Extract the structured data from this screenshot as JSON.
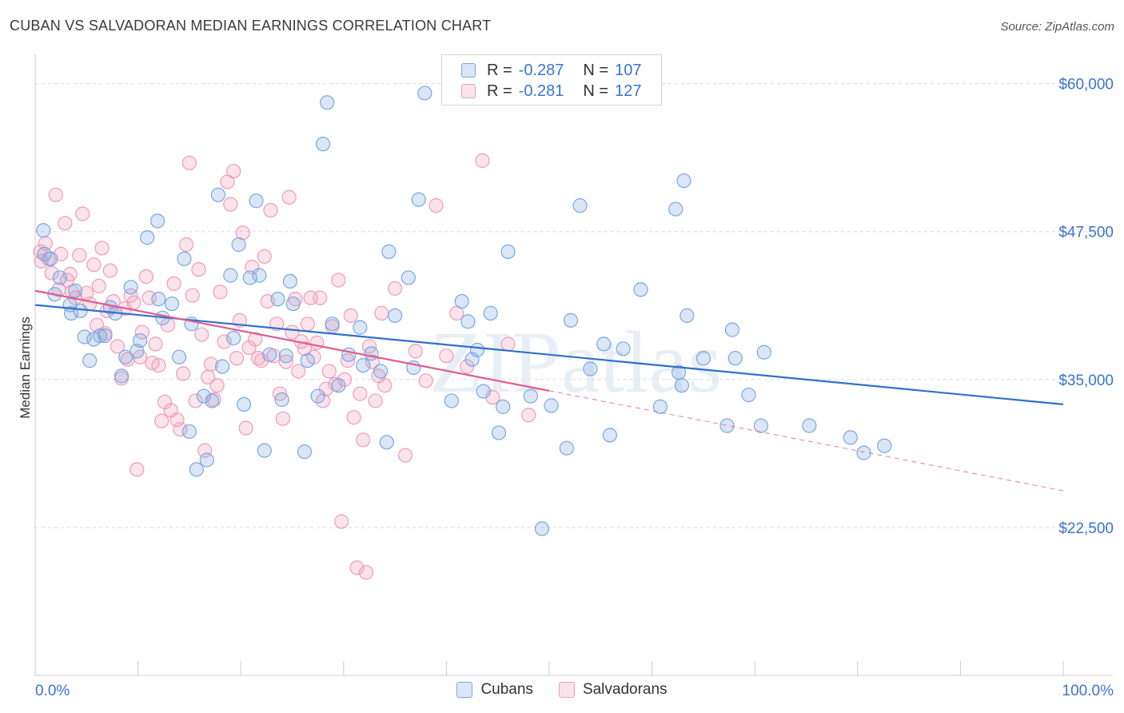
{
  "header": {
    "title": "CUBAN VS SALVADORAN MEDIAN EARNINGS CORRELATION CHART",
    "source": "Source: ZipAtlas.com"
  },
  "watermark": "ZIPatlas",
  "legend": {
    "rows": [
      {
        "r_label": "R =",
        "r_value": "-0.287",
        "n_label": "N =",
        "n_value": "107",
        "color": "#7aa7e0"
      },
      {
        "r_label": "R =",
        "r_value": "-0.281",
        "n_label": "N =",
        "n_value": "127",
        "color": "#f19bb8"
      }
    ]
  },
  "bottom_legend": {
    "items": [
      {
        "label": "Cubans",
        "color": "#7aa7e0"
      },
      {
        "label": "Salvadorans",
        "color": "#f19bb8"
      }
    ]
  },
  "chart_data": {
    "type": "scatter",
    "title": "CUBAN VS SALVADORAN MEDIAN EARNINGS CORRELATION CHART",
    "ylabel": "Median Earnings",
    "xlim": [
      0,
      100
    ],
    "ylim": [
      10000,
      62000
    ],
    "x_tick_labels": [
      "0.0%",
      "100.0%"
    ],
    "y_ticks": [
      22500,
      35000,
      47500,
      60000
    ],
    "y_tick_labels": [
      "$22,500",
      "$35,000",
      "$47,500",
      "$60,000"
    ],
    "grid": "dashed horizontal",
    "series": [
      {
        "name": "Cubans",
        "color": "#7aa7e0",
        "line_color": "#2f6fcf",
        "trend": {
          "x0": 0,
          "y0": 41300,
          "x1": 100,
          "y1": 32900,
          "dashed_from": null
        },
        "points": [
          [
            0.8,
            47600
          ],
          [
            0.9,
            45600
          ],
          [
            1.5,
            45200
          ],
          [
            1.9,
            42200
          ],
          [
            2.4,
            43600
          ],
          [
            3.4,
            41300
          ],
          [
            3.5,
            40600
          ],
          [
            3.9,
            42500
          ],
          [
            4.4,
            40800
          ],
          [
            4.8,
            38600
          ],
          [
            5.3,
            36600
          ],
          [
            5.7,
            38400
          ],
          [
            6.3,
            38700
          ],
          [
            6.8,
            38700
          ],
          [
            7.3,
            41100
          ],
          [
            7.8,
            40600
          ],
          [
            8.4,
            35300
          ],
          [
            8.8,
            36900
          ],
          [
            9.3,
            42800
          ],
          [
            9.9,
            37400
          ],
          [
            10.2,
            38300
          ],
          [
            10.9,
            47000
          ],
          [
            11.9,
            48400
          ],
          [
            12.0,
            41800
          ],
          [
            12.4,
            40200
          ],
          [
            13.3,
            41400
          ],
          [
            14.0,
            36900
          ],
          [
            14.5,
            45200
          ],
          [
            15.0,
            30600
          ],
          [
            15.2,
            39700
          ],
          [
            15.7,
            27400
          ],
          [
            16.4,
            33600
          ],
          [
            16.7,
            28200
          ],
          [
            17.2,
            33200
          ],
          [
            17.8,
            50600
          ],
          [
            18.2,
            36100
          ],
          [
            19.0,
            43800
          ],
          [
            19.3,
            38500
          ],
          [
            19.8,
            46400
          ],
          [
            20.3,
            32900
          ],
          [
            20.9,
            43600
          ],
          [
            21.5,
            50100
          ],
          [
            21.8,
            43800
          ],
          [
            22.3,
            29000
          ],
          [
            22.8,
            37100
          ],
          [
            23.6,
            41800
          ],
          [
            24.0,
            33300
          ],
          [
            24.4,
            37000
          ],
          [
            24.8,
            43300
          ],
          [
            25.1,
            41400
          ],
          [
            26.2,
            28900
          ],
          [
            26.5,
            36600
          ],
          [
            27.5,
            33600
          ],
          [
            28.0,
            54900
          ],
          [
            28.4,
            58400
          ],
          [
            28.9,
            39700
          ],
          [
            29.5,
            34500
          ],
          [
            30.5,
            37100
          ],
          [
            31.6,
            39400
          ],
          [
            31.9,
            36200
          ],
          [
            32.7,
            37200
          ],
          [
            33.6,
            35700
          ],
          [
            34.2,
            29700
          ],
          [
            34.4,
            45800
          ],
          [
            35.0,
            40400
          ],
          [
            36.3,
            43600
          ],
          [
            36.8,
            36000
          ],
          [
            37.3,
            50200
          ],
          [
            37.9,
            59200
          ],
          [
            40.5,
            33200
          ],
          [
            41.5,
            41600
          ],
          [
            42.1,
            39900
          ],
          [
            42.5,
            36700
          ],
          [
            43.0,
            37500
          ],
          [
            43.6,
            34000
          ],
          [
            44.3,
            40600
          ],
          [
            45.1,
            30500
          ],
          [
            45.5,
            32700
          ],
          [
            46.0,
            45800
          ],
          [
            48.2,
            33600
          ],
          [
            49.3,
            22400
          ],
          [
            50.2,
            32800
          ],
          [
            51.7,
            29200
          ],
          [
            52.1,
            40000
          ],
          [
            53.0,
            49700
          ],
          [
            54.0,
            35900
          ],
          [
            55.3,
            38000
          ],
          [
            55.9,
            30300
          ],
          [
            57.2,
            37600
          ],
          [
            58.9,
            42600
          ],
          [
            60.8,
            32700
          ],
          [
            62.3,
            49400
          ],
          [
            62.6,
            35600
          ],
          [
            62.9,
            34500
          ],
          [
            63.1,
            51800
          ],
          [
            63.4,
            40400
          ],
          [
            65.0,
            36800
          ],
          [
            67.3,
            31100
          ],
          [
            67.8,
            39200
          ],
          [
            68.1,
            36800
          ],
          [
            69.4,
            33700
          ],
          [
            70.6,
            31100
          ],
          [
            70.9,
            37300
          ],
          [
            75.3,
            31100
          ],
          [
            79.3,
            30100
          ],
          [
            80.6,
            28800
          ],
          [
            82.6,
            29400
          ]
        ]
      },
      {
        "name": "Salvadorans",
        "color": "#f19bb8",
        "line_color": "#e05c8c",
        "trend": {
          "x0": 0,
          "y0": 42500,
          "x1": 100,
          "y1": 25600,
          "dashed_from": 50
        },
        "points": [
          [
            0.5,
            45800
          ],
          [
            0.6,
            45000
          ],
          [
            1.0,
            46500
          ],
          [
            1.3,
            45200
          ],
          [
            1.6,
            44000
          ],
          [
            2.0,
            50600
          ],
          [
            2.3,
            42600
          ],
          [
            2.5,
            45600
          ],
          [
            2.9,
            48200
          ],
          [
            3.1,
            43400
          ],
          [
            3.4,
            43900
          ],
          [
            3.6,
            42400
          ],
          [
            3.9,
            41900
          ],
          [
            4.3,
            45500
          ],
          [
            4.6,
            49000
          ],
          [
            5.0,
            42300
          ],
          [
            5.3,
            41400
          ],
          [
            5.7,
            44700
          ],
          [
            6.0,
            39600
          ],
          [
            6.2,
            42900
          ],
          [
            6.5,
            46100
          ],
          [
            6.8,
            38900
          ],
          [
            7.0,
            40800
          ],
          [
            7.3,
            44200
          ],
          [
            7.6,
            41600
          ],
          [
            8.0,
            37800
          ],
          [
            8.4,
            35100
          ],
          [
            8.7,
            41000
          ],
          [
            9.0,
            36700
          ],
          [
            9.3,
            42100
          ],
          [
            9.6,
            41500
          ],
          [
            9.9,
            27400
          ],
          [
            10.2,
            36900
          ],
          [
            10.4,
            39000
          ],
          [
            10.8,
            43700
          ],
          [
            11.1,
            41900
          ],
          [
            11.4,
            36400
          ],
          [
            11.7,
            38000
          ],
          [
            12.0,
            36200
          ],
          [
            12.3,
            31500
          ],
          [
            12.6,
            33100
          ],
          [
            12.9,
            39600
          ],
          [
            13.2,
            32400
          ],
          [
            13.5,
            43100
          ],
          [
            13.8,
            31600
          ],
          [
            14.1,
            30800
          ],
          [
            14.4,
            35500
          ],
          [
            14.7,
            46400
          ],
          [
            15.0,
            53300
          ],
          [
            15.3,
            42100
          ],
          [
            15.6,
            33200
          ],
          [
            15.9,
            44300
          ],
          [
            16.2,
            38800
          ],
          [
            16.5,
            29000
          ],
          [
            16.8,
            35200
          ],
          [
            17.1,
            36300
          ],
          [
            17.4,
            33300
          ],
          [
            17.7,
            34500
          ],
          [
            18.0,
            42400
          ],
          [
            18.4,
            38200
          ],
          [
            18.7,
            51700
          ],
          [
            19.0,
            49800
          ],
          [
            19.3,
            52600
          ],
          [
            19.6,
            36800
          ],
          [
            19.9,
            40000
          ],
          [
            20.2,
            47400
          ],
          [
            20.5,
            30900
          ],
          [
            20.8,
            37700
          ],
          [
            21.1,
            44500
          ],
          [
            21.4,
            38400
          ],
          [
            21.7,
            36800
          ],
          [
            22.0,
            36600
          ],
          [
            22.3,
            45400
          ],
          [
            22.6,
            41600
          ],
          [
            22.9,
            49300
          ],
          [
            23.2,
            37000
          ],
          [
            23.5,
            39700
          ],
          [
            23.8,
            33800
          ],
          [
            24.1,
            31700
          ],
          [
            24.4,
            36500
          ],
          [
            24.7,
            50400
          ],
          [
            25.0,
            39000
          ],
          [
            25.3,
            41800
          ],
          [
            25.6,
            35700
          ],
          [
            25.9,
            38200
          ],
          [
            26.2,
            37600
          ],
          [
            26.5,
            39700
          ],
          [
            26.8,
            41900
          ],
          [
            27.1,
            36900
          ],
          [
            27.4,
            38100
          ],
          [
            27.7,
            41900
          ],
          [
            28.0,
            33200
          ],
          [
            28.3,
            34200
          ],
          [
            28.6,
            35700
          ],
          [
            28.9,
            39500
          ],
          [
            29.2,
            34600
          ],
          [
            29.5,
            43400
          ],
          [
            29.8,
            23000
          ],
          [
            30.1,
            35000
          ],
          [
            30.4,
            36600
          ],
          [
            30.7,
            40400
          ],
          [
            31.0,
            31800
          ],
          [
            31.3,
            19100
          ],
          [
            31.6,
            33800
          ],
          [
            31.9,
            29900
          ],
          [
            32.2,
            18700
          ],
          [
            32.5,
            37800
          ],
          [
            32.8,
            36500
          ],
          [
            33.1,
            33200
          ],
          [
            33.4,
            35300
          ],
          [
            33.7,
            40600
          ],
          [
            34.0,
            34500
          ],
          [
            35.0,
            42700
          ],
          [
            36.0,
            28600
          ],
          [
            37.0,
            37400
          ],
          [
            38.0,
            34900
          ],
          [
            39.0,
            49700
          ],
          [
            40.0,
            37000
          ],
          [
            41.0,
            40600
          ],
          [
            42.0,
            36100
          ],
          [
            43.5,
            53500
          ],
          [
            44.5,
            33500
          ],
          [
            46.0,
            38000
          ],
          [
            48.0,
            32000
          ]
        ]
      }
    ]
  }
}
